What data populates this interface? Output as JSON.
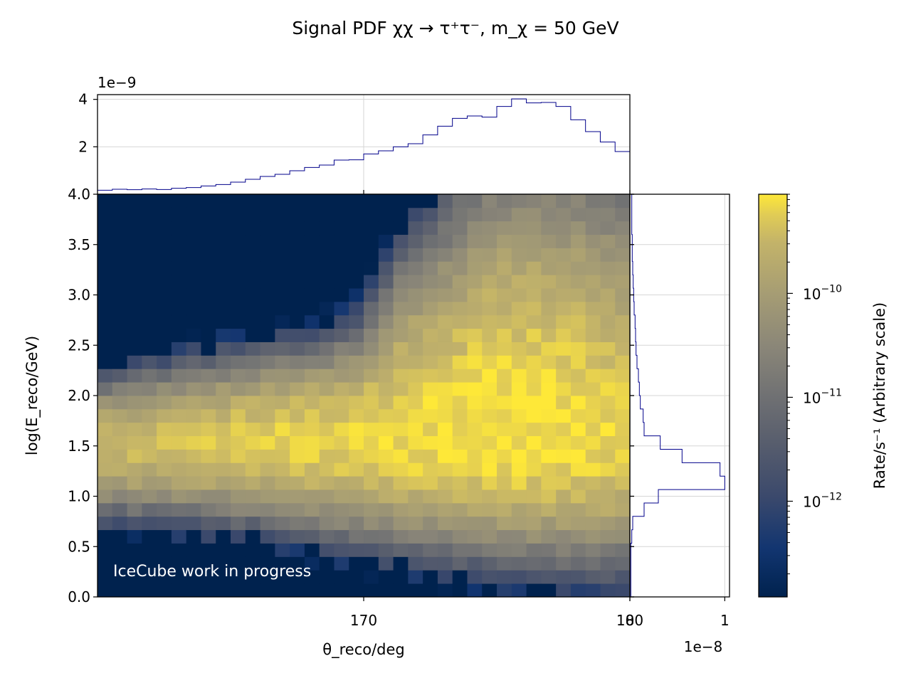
{
  "chart_data": {
    "type": "heatmap",
    "title": "Signal PDF χχ → τ⁺τ⁻, m_χ = 50 GeV",
    "xlabel": "θ_reco/deg",
    "ylabel": "log(E_reco/GeV)",
    "colorbar_label": "Rate/s⁻¹ (Arbitrary scale)",
    "annotation": "IceCube work in progress",
    "xlim": [
      160,
      180
    ],
    "ylim": [
      0,
      4
    ],
    "x_ticks": [
      "170",
      "180"
    ],
    "y_ticks": [
      "0.0",
      "0.5",
      "1.0",
      "1.5",
      "2.0",
      "2.5",
      "3.0",
      "3.5",
      "4.0"
    ],
    "grid": true,
    "colormap": "cividis",
    "colorbar": {
      "scale": "log",
      "range": [
        1.2e-13,
        9e-10
      ],
      "ticks": [
        {
          "value": 1e-10,
          "base": "10",
          "exp": "−10"
        },
        {
          "value": 1e-11,
          "base": "10",
          "exp": "−11"
        },
        {
          "value": 1e-12,
          "base": "10",
          "exp": "−12"
        }
      ]
    },
    "top_histogram": {
      "scale_label": "1e−9",
      "ylim": [
        0,
        4.2
      ],
      "y_ticks": [
        "2",
        "4"
      ],
      "values": [
        0.17,
        0.21,
        0.19,
        0.22,
        0.2,
        0.25,
        0.28,
        0.35,
        0.41,
        0.51,
        0.63,
        0.75,
        0.84,
        0.99,
        1.13,
        1.23,
        1.44,
        1.45,
        1.7,
        1.83,
        2.0,
        2.13,
        2.5,
        2.87,
        3.2,
        3.3,
        3.25,
        3.7,
        4.02,
        3.85,
        3.87,
        3.7,
        3.14,
        2.64,
        2.2,
        1.8
      ]
    },
    "right_histogram": {
      "scale_label": "1e−8",
      "xlim": [
        0,
        1.05
      ],
      "x_ticks": [
        "0",
        "1"
      ],
      "bin_width": 0.13333,
      "values": [
        0.01,
        0.01,
        0.01,
        0.01,
        0.02,
        0.03,
        0.15,
        0.3,
        1.0,
        0.95,
        0.55,
        0.32,
        0.15,
        0.14,
        0.11,
        0.1,
        0.09,
        0.075,
        0.065,
        0.06,
        0.055,
        0.045,
        0.04,
        0.035,
        0.03,
        0.025,
        0.025,
        0.02,
        0.02,
        0.02
      ]
    },
    "bins": {
      "nx": 36,
      "ny": 30,
      "x_start": 160,
      "x_step": 0.5556,
      "y_start": 0,
      "y_step": 0.13333
    },
    "center_E": [
      1.48,
      1.5,
      1.5,
      1.52,
      1.52,
      1.52,
      1.53,
      1.53,
      1.53,
      1.54,
      1.55,
      1.55,
      1.55,
      1.55,
      1.55,
      1.55,
      1.55,
      1.55,
      1.55,
      1.55,
      1.55,
      1.55,
      1.55,
      1.55,
      1.55,
      1.55,
      1.55,
      1.55,
      1.55,
      1.55,
      1.55,
      1.55,
      1.55,
      1.55,
      1.55,
      1.55
    ],
    "sigma_low": [
      0.23,
      0.23,
      0.24,
      0.24,
      0.24,
      0.25,
      0.25,
      0.26,
      0.26,
      0.27,
      0.27,
      0.28,
      0.29,
      0.29,
      0.3,
      0.31,
      0.32,
      0.33,
      0.33,
      0.34,
      0.34,
      0.35,
      0.36,
      0.36,
      0.37,
      0.37,
      0.38,
      0.38,
      0.39,
      0.39,
      0.39,
      0.4,
      0.4,
      0.4,
      0.41,
      0.41
    ],
    "sigma_high": [
      0.23,
      0.23,
      0.24,
      0.25,
      0.25,
      0.26,
      0.27,
      0.27,
      0.28,
      0.28,
      0.29,
      0.29,
      0.3,
      0.3,
      0.31,
      0.32,
      0.34,
      0.36,
      0.42,
      0.5,
      0.58,
      0.62,
      0.66,
      0.72,
      0.78,
      0.83,
      0.88,
      0.9,
      0.92,
      0.92,
      0.92,
      0.9,
      0.9,
      0.88,
      0.86,
      0.85
    ],
    "peak_rate": [
      3.4e-10,
      3.6e-10,
      3.7e-10,
      3.7e-10,
      3.8e-10,
      4e-10,
      4.2e-10,
      4.5e-10,
      4.7e-10,
      5e-10,
      5.3e-10,
      5.6e-10,
      5.8e-10,
      6e-10,
      6.2e-10,
      6.3e-10,
      6.5e-10,
      6.7e-10,
      6.8e-10,
      7e-10,
      7.3e-10,
      7.5e-10,
      7.8e-10,
      8e-10,
      8.3e-10,
      8.6e-10,
      8.7e-10,
      8.8e-10,
      8.8e-10,
      8.8e-10,
      8.6e-10,
      8.3e-10,
      7.8e-10,
      7.2e-10,
      6.5e-10,
      5.8e-10
    ]
  }
}
